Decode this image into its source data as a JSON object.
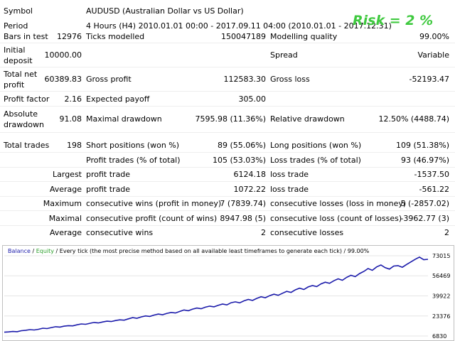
{
  "report": {
    "symbol_label": "Symbol",
    "symbol_value": "AUDUSD (Australian Dollar vs US Dollar)",
    "period_label": "Period",
    "period_value": "4 Hours (H4) 2010.01.01 00:00 - 2017.09.11 04:00 (2010.01.01 - 2017.12.31)",
    "risk_text": "Risk = 2 %",
    "bars_label": "Bars in test",
    "bars_value": "12976",
    "ticks_label": "Ticks modelled",
    "ticks_value": "150047189",
    "quality_label": "Modelling quality",
    "quality_value": "99.00%",
    "deposit_label_1": "Initial",
    "deposit_label_2": "deposit",
    "deposit_value": "10000.00",
    "spread_label": "Spread",
    "spread_value": "Variable",
    "netprofit_label_1": "Total net",
    "netprofit_label_2": "profit",
    "netprofit_value": "60389.83",
    "grossprofit_label": "Gross profit",
    "grossprofit_value": "112583.30",
    "grossloss_label": "Gross loss",
    "grossloss_value": "-52193.47",
    "pf_label": "Profit factor",
    "pf_value": "2.16",
    "payoff_label": "Expected payoff",
    "payoff_value": "305.00",
    "absdd_label_1": "Absolute",
    "absdd_label_2": "drawdown",
    "absdd_value": "91.08",
    "maxdd_label": "Maximal drawdown",
    "maxdd_value": "7595.98 (11.36%)",
    "reldd_label": "Relative drawdown",
    "reldd_value": "12.50% (4488.74)",
    "trades_label": "Total trades",
    "trades_value": "198",
    "short_label": "Short positions (won %)",
    "short_value": "89 (55.06%)",
    "long_label": "Long positions (won %)",
    "long_value": "109 (51.38%)",
    "ptrades_label": "Profit trades (% of total)",
    "ptrades_value": "105 (53.03%)",
    "ltrades_label": "Loss trades (% of total)",
    "ltrades_value": "93 (46.97%)",
    "largest_label": "Largest",
    "largest_profit_label": "profit trade",
    "largest_profit_value": "6124.18",
    "largest_loss_label": "loss trade",
    "largest_loss_value": "-1537.50",
    "average_label": "Average",
    "average_profit_label": "profit trade",
    "average_profit_value": "1072.22",
    "average_loss_label": "loss trade",
    "average_loss_value": "-561.22",
    "maximum_label": "Maximum",
    "max_cwins_label": "consecutive wins (profit in money)",
    "max_cwins_value": "7 (7839.74)",
    "max_closses_label": "consecutive losses (loss in money)",
    "max_closses_value": "5 (-2857.02)",
    "maximal_label": "Maximal",
    "maximal_cprofit_label": "consecutive profit (count of wins)",
    "maximal_cprofit_value": "8947.98 (5)",
    "maximal_closs_label": "consecutive loss (count of losses)",
    "maximal_closs_value": "-3962.77 (3)",
    "average2_label": "Average",
    "avg_cwins_label": "consecutive wins",
    "avg_cwins_value": "2",
    "avg_closses_label": "consecutive losses",
    "avg_closses_value": "2"
  },
  "chart_data": {
    "type": "line",
    "legend_balance": "Balance",
    "legend_sep": "/",
    "legend_equity": "Equity",
    "legend_rest": "/ Every tick (the most precise method based on all available least timeframes to generate each tick) / 99.00%",
    "yticks": [
      "73015",
      "56469",
      "39922",
      "23376",
      "6830"
    ],
    "ylim": [
      6830,
      73015
    ],
    "series": [
      {
        "values": [
          10000,
          10200,
          10600,
          10400,
          11200,
          11600,
          12100,
          11800,
          12400,
          13300,
          13000,
          13800,
          14500,
          14200,
          15000,
          15400,
          15200,
          16100,
          16800,
          16500,
          17300,
          18000,
          17600,
          18400,
          19100,
          18800,
          19600,
          20200,
          19900,
          21000,
          22000,
          21500,
          22600,
          23400,
          23000,
          24100,
          24900,
          24400,
          25500,
          26300,
          25800,
          27100,
          28300,
          27700,
          29000,
          29900,
          29300,
          30600,
          31500,
          30900,
          32200,
          33200,
          32500,
          34300,
          35000,
          34200,
          35800,
          37000,
          36200,
          37900,
          39200,
          38400,
          40100,
          41300,
          40400,
          42100,
          43700,
          42800,
          44900,
          46300,
          45200,
          47300,
          48400,
          47600,
          49800,
          51200,
          50300,
          52400,
          54000,
          52800,
          55200,
          56900,
          55800,
          58300,
          60100,
          62500,
          61000,
          63800,
          65400,
          63200,
          62000,
          64500,
          64900,
          63500,
          65800,
          67900,
          70000,
          71900,
          69800,
          70100
        ],
        "color": "#1a1aaa"
      }
    ],
    "colors": {
      "balance": "#1a1aaa",
      "equity": "#2ca02c",
      "grid": "#e6e6e6"
    }
  }
}
